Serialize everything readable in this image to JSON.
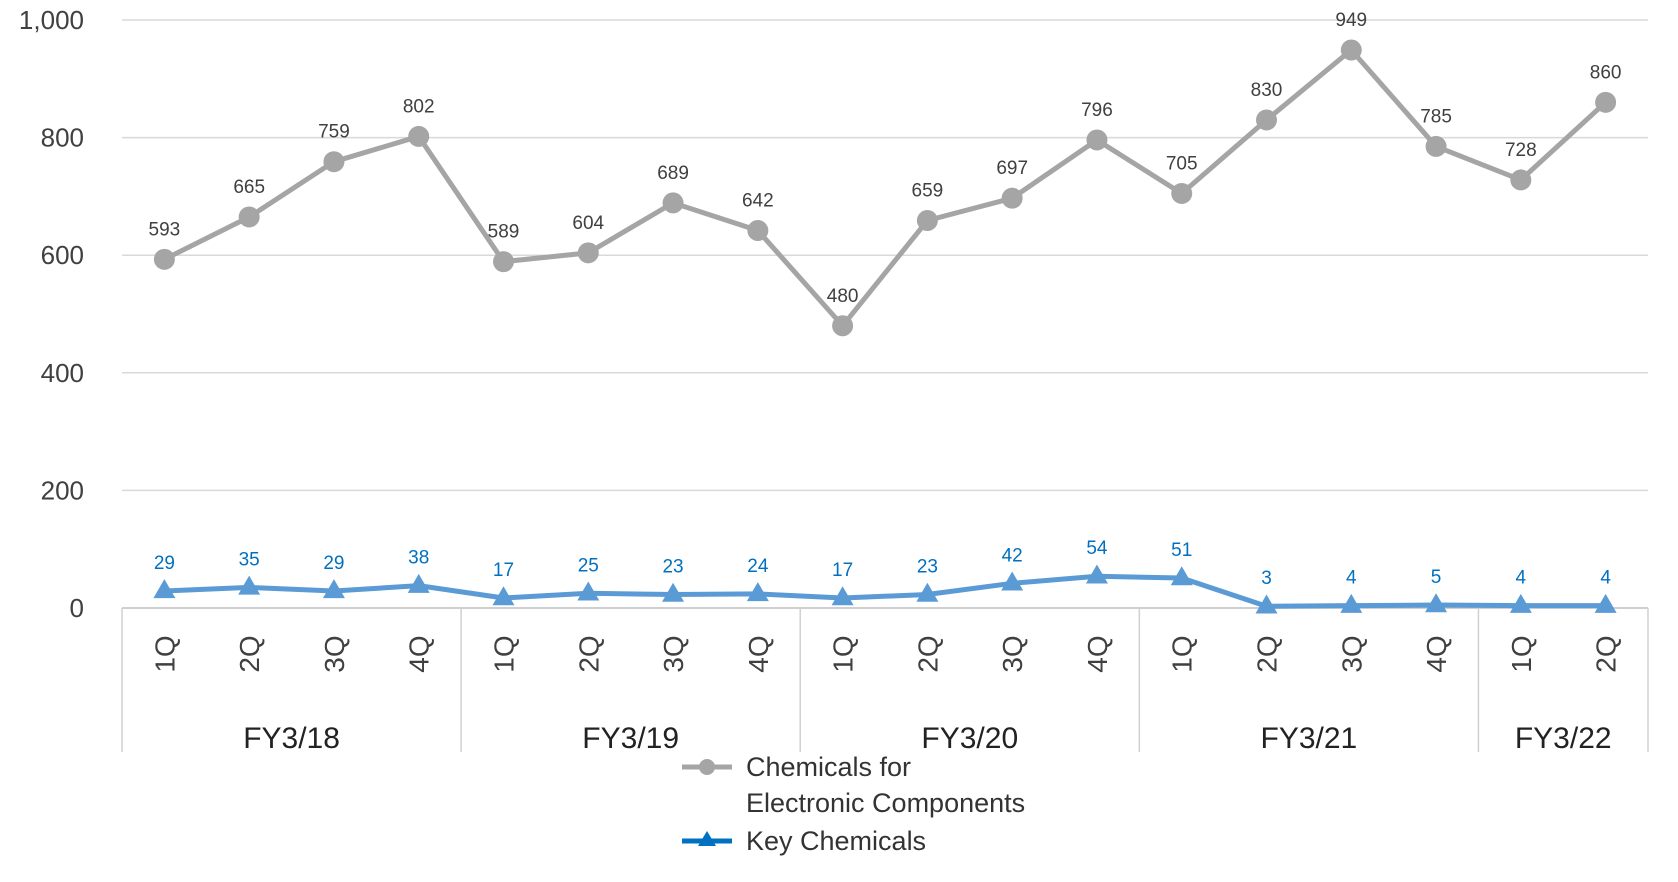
{
  "chart_data": {
    "type": "line",
    "title": "",
    "xlabel": "",
    "ylabel": "",
    "ylim": [
      0,
      1000
    ],
    "yticks": [
      0,
      200,
      400,
      600,
      800,
      1000
    ],
    "ytick_labels": [
      "0",
      "200",
      "400",
      "600",
      "800",
      "1,000"
    ],
    "grid": true,
    "legend_position": "bottom",
    "categories": [
      "1Q",
      "2Q",
      "3Q",
      "4Q",
      "1Q",
      "2Q",
      "3Q",
      "4Q",
      "1Q",
      "2Q",
      "3Q",
      "4Q",
      "1Q",
      "2Q",
      "3Q",
      "4Q",
      "1Q",
      "2Q"
    ],
    "groups": [
      {
        "label": "FY3/18",
        "count": 4
      },
      {
        "label": "FY3/19",
        "count": 4
      },
      {
        "label": "FY3/20",
        "count": 4
      },
      {
        "label": "FY3/21",
        "count": 4
      },
      {
        "label": "FY3/22",
        "count": 2
      }
    ],
    "series": [
      {
        "name": "Chemicals for Electronic Components",
        "legend_lines": [
          "Chemicals for",
          "Electronic Components"
        ],
        "color": "#A5A5A5",
        "label_color": "#404040",
        "marker": "circle",
        "values": [
          593,
          665,
          759,
          802,
          589,
          604,
          689,
          642,
          480,
          659,
          697,
          796,
          705,
          830,
          949,
          785,
          728,
          860
        ]
      },
      {
        "name": "Key Chemicals",
        "legend_lines": [
          "Key Chemicals"
        ],
        "color": "#5B9BD5",
        "legend_color": "#0070C0",
        "label_color": "#0070C0",
        "marker": "triangle",
        "values": [
          29,
          35,
          29,
          38,
          17,
          25,
          23,
          24,
          17,
          23,
          42,
          54,
          51,
          3,
          4,
          5,
          4,
          4
        ]
      }
    ]
  }
}
